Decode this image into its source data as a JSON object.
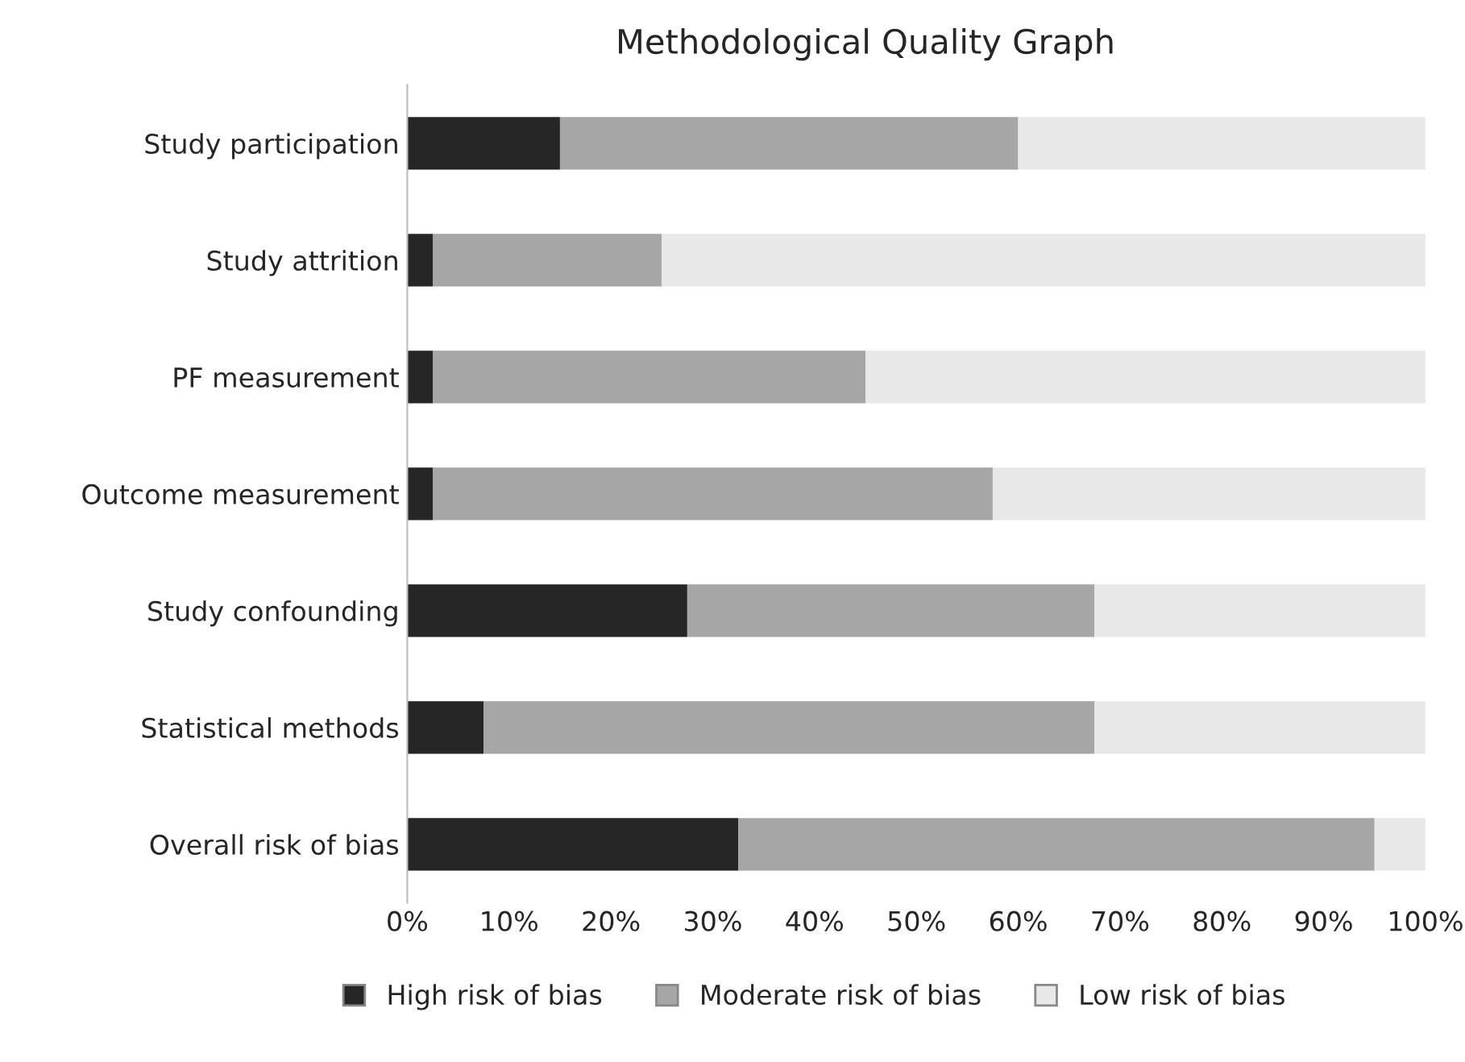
{
  "chart_data": {
    "type": "bar",
    "title": "Methodological Quality Graph",
    "orientation": "horizontal",
    "stacked": true,
    "legend": "bottom",
    "grid": false,
    "categories": [
      "Study participation",
      "Study attrition",
      "PF measurement",
      "Outcome measurement",
      "Study confounding",
      "Statistical methods",
      "Overall risk of bias"
    ],
    "series": [
      {
        "name": "High risk of bias",
        "color": "#262626",
        "values": [
          15,
          2.5,
          2.5,
          2.5,
          27.5,
          7.5,
          32.5
        ]
      },
      {
        "name": "Moderate risk of bias",
        "color": "#a6a6a6",
        "values": [
          45,
          22.5,
          42.5,
          55,
          40,
          60,
          62.5
        ]
      },
      {
        "name": "Low risk of bias",
        "color": "#e8e8e8",
        "values": [
          40,
          75,
          55,
          42.5,
          32.5,
          32.5,
          5
        ]
      }
    ],
    "xlim": [
      0,
      100
    ],
    "xticks": [
      {
        "value": 0,
        "label": "0%"
      },
      {
        "value": 10,
        "label": "10%"
      },
      {
        "value": 20,
        "label": "20%"
      },
      {
        "value": 30,
        "label": "30%"
      },
      {
        "value": 40,
        "label": "40%"
      },
      {
        "value": 50,
        "label": "50%"
      },
      {
        "value": 60,
        "label": "60%"
      },
      {
        "value": 70,
        "label": "70%"
      },
      {
        "value": 80,
        "label": "80%"
      },
      {
        "value": 90,
        "label": "90%"
      },
      {
        "value": 100,
        "label": "100%"
      }
    ]
  }
}
